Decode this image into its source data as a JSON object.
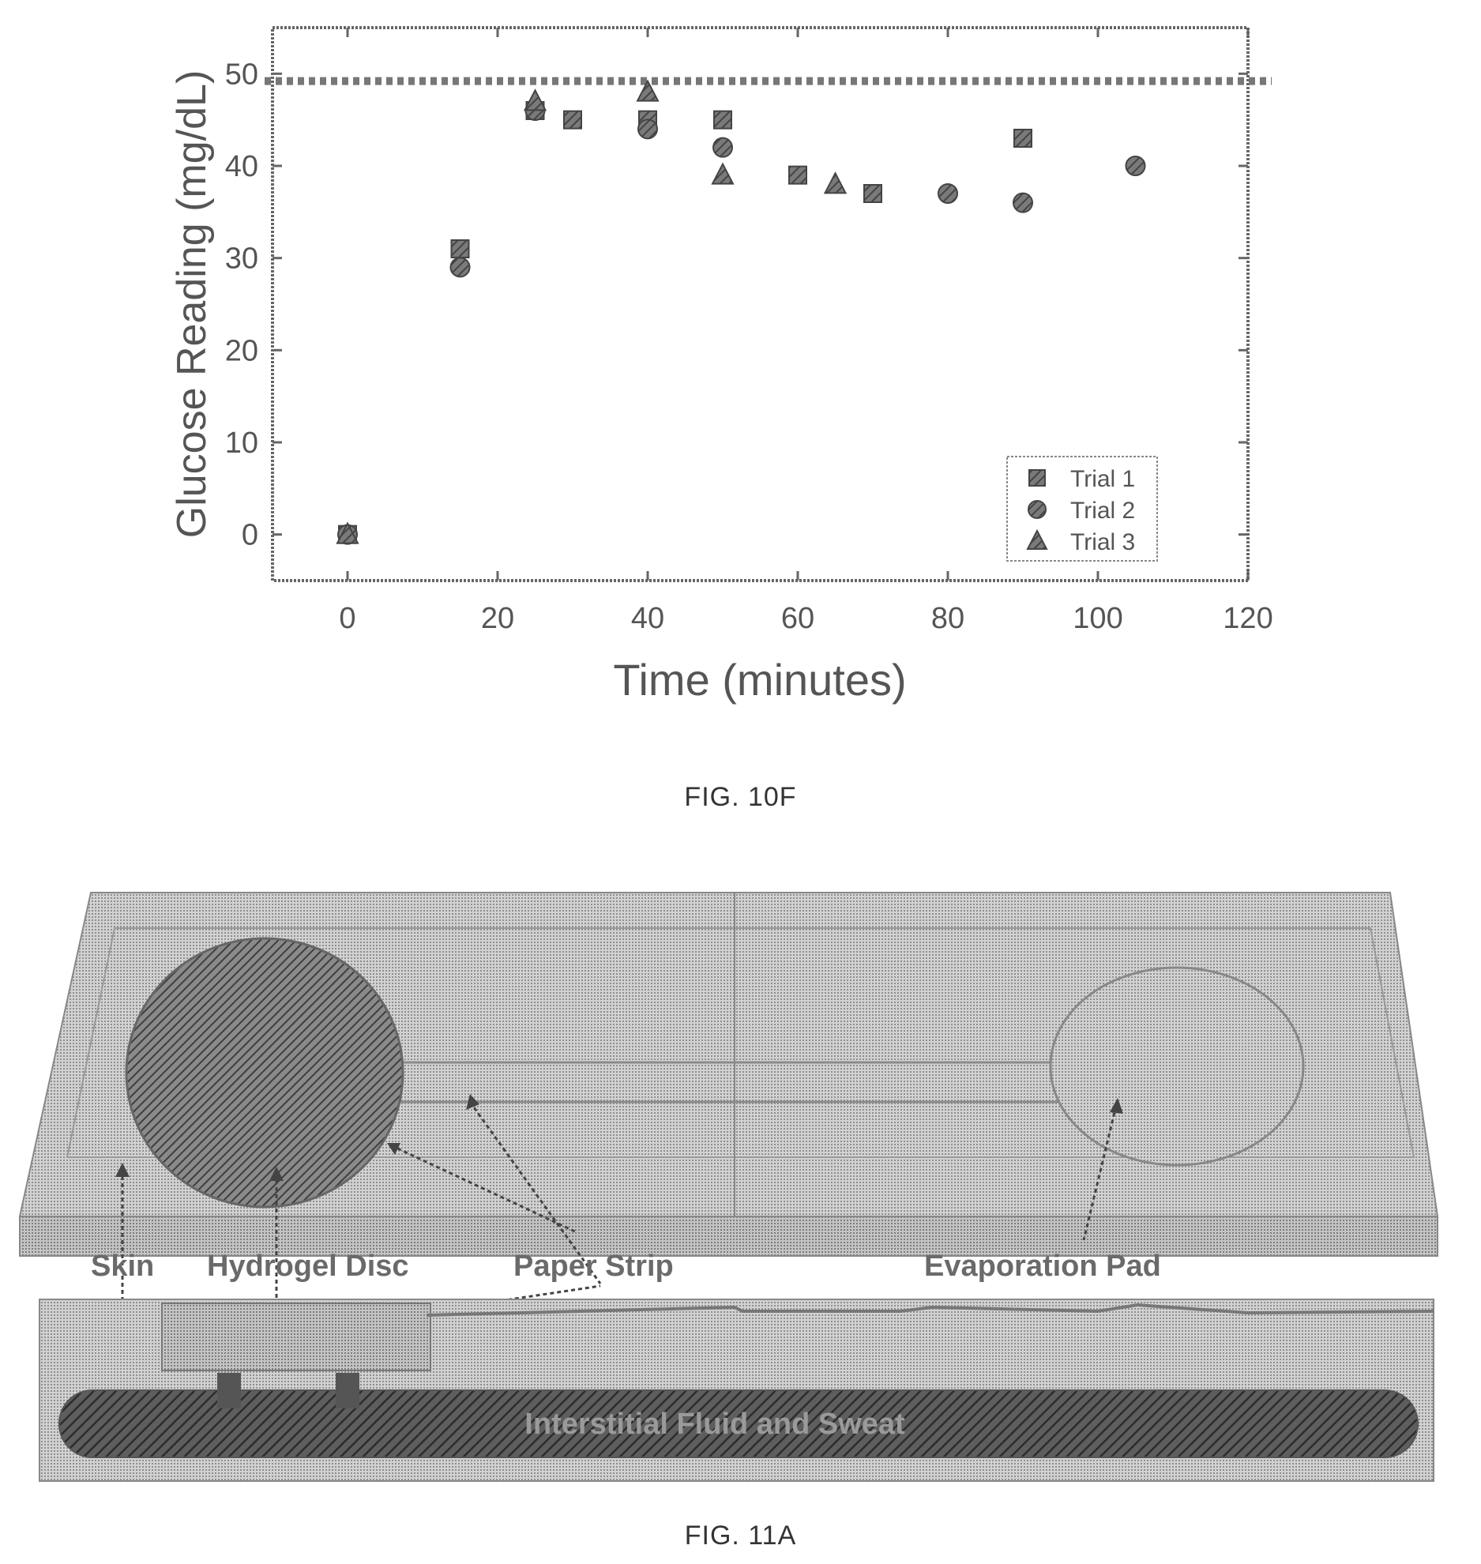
{
  "fig10f": {
    "caption": "FIG. 10F",
    "chart_data": {
      "type": "scatter",
      "xlabel": "Time (minutes)",
      "ylabel": "Glucose Reading (mg/dL)",
      "xlim": [
        -10,
        120
      ],
      "ylim": [
        -5,
        55
      ],
      "x_ticks": [
        0,
        20,
        40,
        60,
        80,
        100,
        120
      ],
      "y_ticks": [
        0,
        10,
        20,
        30,
        40,
        50
      ],
      "reference_line_y": 49.2,
      "legend_position": "bottom-right",
      "grid": false,
      "series": [
        {
          "name": "Trial 1",
          "marker": "square",
          "x": [
            0,
            15,
            25,
            30,
            40,
            50,
            60,
            70,
            90
          ],
          "y": [
            0,
            31,
            46,
            45,
            45,
            45,
            39,
            37,
            43
          ]
        },
        {
          "name": "Trial 2",
          "marker": "circle",
          "x": [
            0,
            15,
            25,
            40,
            50,
            80,
            90,
            105
          ],
          "y": [
            0,
            29,
            46,
            44,
            42,
            37,
            36,
            40
          ]
        },
        {
          "name": "Trial 3",
          "marker": "triangle",
          "x": [
            0,
            25,
            40,
            50,
            65
          ],
          "y": [
            0,
            47,
            48,
            39,
            38
          ]
        }
      ]
    }
  },
  "fig11a": {
    "caption": "FIG. 11A",
    "labels": {
      "skin": "Skin",
      "hydrogel": "Hydrogel Disc",
      "paper": "Paper Strip",
      "evap": "Evaporation Pad",
      "fluid": "Interstitial Fluid and Sweat"
    }
  }
}
